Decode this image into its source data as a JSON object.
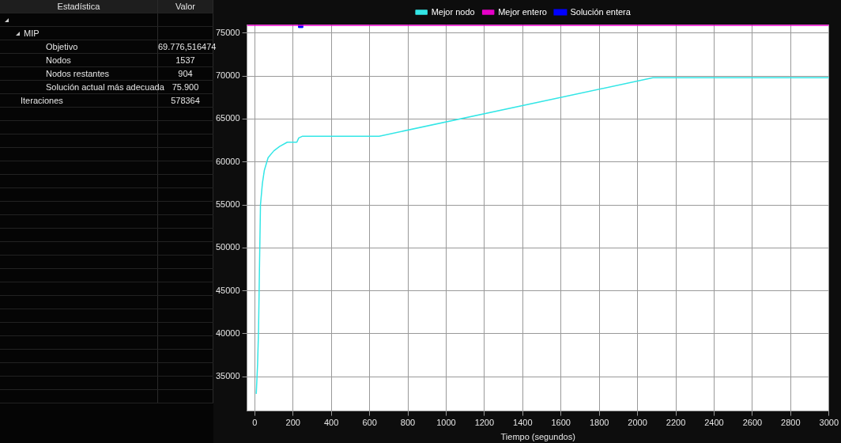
{
  "chart_data": [
    {
      "type": "other",
      "annotations": [
        "Estadística",
        "Valor",
        "MIP",
        "Objetivo",
        "69.776,516474",
        "Nodos",
        "1537",
        "Nodos restantes",
        "904",
        "Solución actual más adecuada",
        "75.900",
        "Iteraciones",
        "578364"
      ]
    },
    {
      "type": "line",
      "xlabel": "Tiempo (segundos)",
      "xlim": [
        -40,
        3000
      ],
      "ylim": [
        31000,
        76000
      ],
      "xticks": [
        0,
        200,
        400,
        600,
        800,
        1000,
        1200,
        1400,
        1600,
        1800,
        2000,
        2200,
        2400,
        2600,
        2800,
        3000
      ],
      "yticks": [
        35000,
        40000,
        45000,
        50000,
        55000,
        60000,
        65000,
        70000,
        75000
      ],
      "grid": true,
      "legend": "top",
      "marker": "none",
      "line_style": "solid",
      "series": [
        {
          "name": "Mejor nodo",
          "color": "#33e6e6",
          "x": [
            8,
            15,
            20,
            25,
            30,
            40,
            50,
            70,
            100,
            130,
            170,
            220,
            230,
            250,
            650,
            2080,
            3000
          ],
          "values": [
            33000,
            36500,
            40500,
            48000,
            55000,
            57500,
            59000,
            60500,
            61300,
            61800,
            62300,
            62300,
            62800,
            63000,
            63000,
            69800,
            69800
          ]
        },
        {
          "name": "Mejor entero",
          "color": "#e600c8",
          "x": [
            -40,
            3000
          ],
          "values": [
            75900,
            75900
          ]
        },
        {
          "name": "Solución entera",
          "type": "scatter",
          "marker": "square",
          "color": "#0000ff",
          "x": [
            240
          ],
          "values": [
            75900
          ]
        }
      ]
    }
  ]
}
